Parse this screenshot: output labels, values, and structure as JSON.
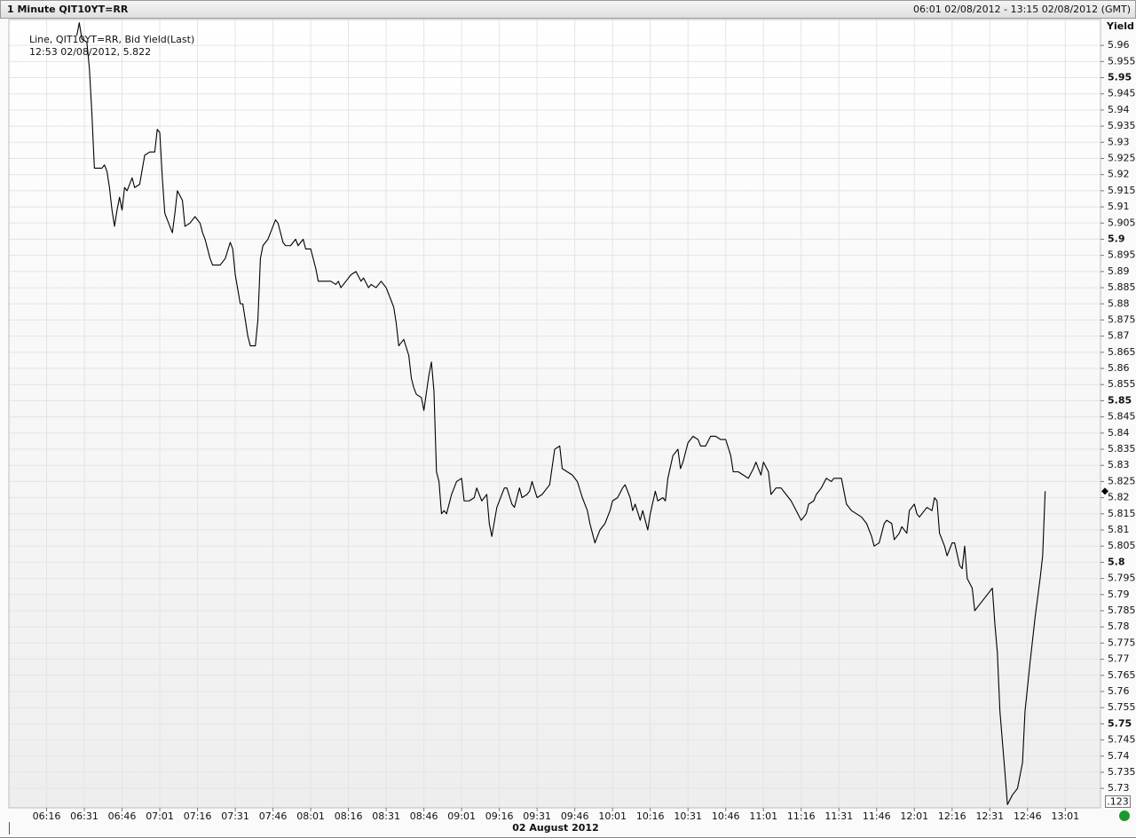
{
  "chart_data": {
    "type": "line",
    "title": "1 Minute QIT10YT=RR",
    "subtitle": "06:01 02/08/2012 - 13:15 02/08/2012 (GMT)",
    "annotations": [
      "Line, QIT10YT=RR, Bid Yield(Last)",
      "12:53 02/08/2012, 5.822"
    ],
    "y_label": "Yield",
    "x_label": "02 August 2012",
    "button_label": ".123",
    "color": "#000000",
    "grid": true,
    "xlim": [
      "06:01",
      "13:15"
    ],
    "xticks": [
      "06:16",
      "06:31",
      "06:46",
      "07:01",
      "07:16",
      "07:31",
      "07:46",
      "08:01",
      "08:16",
      "08:31",
      "08:46",
      "09:01",
      "09:16",
      "09:31",
      "09:46",
      "10:01",
      "10:16",
      "10:31",
      "10:46",
      "11:01",
      "11:16",
      "11:31",
      "11:46",
      "12:01",
      "12:16",
      "12:31",
      "12:46",
      "13:01"
    ],
    "ylim": [
      5.724,
      5.968
    ],
    "yticks": [
      5.73,
      5.735,
      5.74,
      5.745,
      5.75,
      5.755,
      5.76,
      5.765,
      5.77,
      5.775,
      5.78,
      5.785,
      5.79,
      5.795,
      5.8,
      5.805,
      5.81,
      5.815,
      5.82,
      5.825,
      5.83,
      5.835,
      5.84,
      5.845,
      5.85,
      5.855,
      5.86,
      5.865,
      5.87,
      5.875,
      5.88,
      5.885,
      5.89,
      5.895,
      5.9,
      5.905,
      5.91,
      5.915,
      5.92,
      5.925,
      5.93,
      5.935,
      5.94,
      5.945,
      5.95,
      5.955,
      5.96
    ],
    "x": [
      "06:28",
      "06:29",
      "06:30",
      "06:32",
      "06:33",
      "06:34",
      "06:35",
      "06:36",
      "06:38",
      "06:39",
      "06:40",
      "06:41",
      "06:42",
      "06:43",
      "06:44",
      "06:45",
      "06:46",
      "06:47",
      "06:48",
      "06:50",
      "06:51",
      "06:53",
      "06:55",
      "06:57",
      "06:59",
      "07:00",
      "07:01",
      "07:02",
      "07:03",
      "07:05",
      "07:06",
      "07:07",
      "07:08",
      "07:10",
      "07:11",
      "07:13",
      "07:15",
      "07:17",
      "07:18",
      "07:19",
      "07:21",
      "07:22",
      "07:25",
      "07:27",
      "07:29",
      "07:30",
      "07:31",
      "07:33",
      "07:34",
      "07:36",
      "07:37",
      "07:39",
      "07:40",
      "07:41",
      "07:42",
      "07:44",
      "07:46",
      "07:47",
      "07:48",
      "07:50",
      "07:51",
      "07:53",
      "07:55",
      "07:56",
      "07:58",
      "07:59",
      "08:01",
      "08:03",
      "08:04",
      "08:06",
      "08:09",
      "08:11",
      "08:12",
      "08:13",
      "08:15",
      "08:17",
      "08:19",
      "08:21",
      "08:22",
      "08:24",
      "08:25",
      "08:27",
      "08:29",
      "08:31",
      "08:33",
      "08:34",
      "08:35",
      "08:36",
      "08:38",
      "08:40",
      "08:41",
      "08:42",
      "08:43",
      "08:45",
      "08:46",
      "08:48",
      "08:49",
      "08:50",
      "08:51",
      "08:52",
      "08:53",
      "08:54",
      "08:55",
      "08:57",
      "08:59",
      "09:01",
      "09:02",
      "09:04",
      "09:06",
      "09:07",
      "09:09",
      "09:11",
      "09:12",
      "09:13",
      "09:15",
      "09:17",
      "09:18",
      "09:19",
      "09:21",
      "09:22",
      "09:24",
      "09:25",
      "09:27",
      "09:28",
      "09:29",
      "09:31",
      "09:33",
      "09:35",
      "09:36",
      "09:38",
      "09:40",
      "09:41",
      "09:43",
      "09:45",
      "09:47",
      "09:49",
      "09:51",
      "09:52",
      "09:54",
      "09:56",
      "09:58",
      "10:00",
      "10:01",
      "10:03",
      "10:05",
      "10:06",
      "10:08",
      "10:09",
      "10:10",
      "10:12",
      "10:13",
      "10:15",
      "10:16",
      "10:18",
      "10:19",
      "10:21",
      "10:22",
      "10:23",
      "10:25",
      "10:27",
      "10:28",
      "10:29",
      "10:31",
      "10:33",
      "10:35",
      "10:36",
      "10:38",
      "10:40",
      "10:42",
      "10:44",
      "10:46",
      "10:48",
      "10:49",
      "10:51",
      "10:53",
      "10:55",
      "10:57",
      "10:58",
      "11:00",
      "11:01",
      "11:03",
      "11:04",
      "11:06",
      "11:08",
      "11:10",
      "11:12",
      "11:14",
      "11:16",
      "11:18",
      "11:19",
      "11:21",
      "11:22",
      "11:24",
      "11:26",
      "11:28",
      "11:29",
      "11:32",
      "11:34",
      "11:36",
      "11:38",
      "11:40",
      "11:42",
      "11:44",
      "11:45",
      "11:47",
      "11:49",
      "11:50",
      "11:52",
      "11:53",
      "11:55",
      "11:56",
      "11:58",
      "11:59",
      "12:01",
      "12:02",
      "12:03",
      "12:05",
      "12:06",
      "12:08",
      "12:09",
      "12:10",
      "12:11",
      "12:13",
      "12:14",
      "12:16",
      "12:17",
      "12:19",
      "12:20",
      "12:21",
      "12:22",
      "12:24",
      "12:25",
      "12:27",
      "12:29",
      "12:31",
      "12:32",
      "12:33",
      "12:34",
      "12:35",
      "12:37",
      "12:38",
      "12:40",
      "12:42",
      "12:44",
      "12:45",
      "12:47",
      "12:49",
      "12:51",
      "12:52",
      "12:53"
    ],
    "values": [
      5.963,
      5.967,
      5.962,
      5.961,
      5.953,
      5.939,
      5.922,
      5.922,
      5.922,
      5.923,
      5.921,
      5.916,
      5.909,
      5.904,
      5.909,
      5.913,
      5.909,
      5.916,
      5.915,
      5.919,
      5.916,
      5.917,
      5.926,
      5.927,
      5.927,
      5.934,
      5.933,
      5.919,
      5.908,
      5.904,
      5.902,
      5.908,
      5.915,
      5.912,
      5.904,
      5.905,
      5.907,
      5.905,
      5.902,
      5.9,
      5.894,
      5.892,
      5.892,
      5.894,
      5.899,
      5.897,
      5.889,
      5.88,
      5.88,
      5.87,
      5.867,
      5.867,
      5.875,
      5.894,
      5.898,
      5.9,
      5.904,
      5.906,
      5.905,
      5.899,
      5.898,
      5.898,
      5.9,
      5.898,
      5.9,
      5.897,
      5.897,
      5.891,
      5.887,
      5.887,
      5.887,
      5.886,
      5.887,
      5.885,
      5.887,
      5.889,
      5.89,
      5.887,
      5.888,
      5.885,
      5.886,
      5.885,
      5.887,
      5.885,
      5.881,
      5.879,
      5.874,
      5.867,
      5.869,
      5.864,
      5.857,
      5.854,
      5.852,
      5.851,
      5.847,
      5.858,
      5.862,
      5.853,
      5.828,
      5.825,
      5.815,
      5.816,
      5.815,
      5.821,
      5.825,
      5.826,
      5.819,
      5.819,
      5.82,
      5.823,
      5.819,
      5.821,
      5.812,
      5.808,
      5.817,
      5.821,
      5.823,
      5.823,
      5.818,
      5.817,
      5.823,
      5.82,
      5.821,
      5.822,
      5.825,
      5.82,
      5.821,
      5.823,
      5.824,
      5.835,
      5.836,
      5.829,
      5.828,
      5.827,
      5.825,
      5.82,
      5.816,
      5.812,
      5.806,
      5.81,
      5.812,
      5.816,
      5.819,
      5.82,
      5.823,
      5.824,
      5.82,
      5.816,
      5.818,
      5.813,
      5.816,
      5.81,
      5.815,
      5.822,
      5.819,
      5.82,
      5.819,
      5.826,
      5.833,
      5.835,
      5.829,
      5.831,
      5.837,
      5.839,
      5.838,
      5.836,
      5.836,
      5.839,
      5.839,
      5.838,
      5.838,
      5.833,
      5.828,
      5.828,
      5.827,
      5.826,
      5.829,
      5.831,
      5.827,
      5.831,
      5.828,
      5.821,
      5.823,
      5.823,
      5.821,
      5.819,
      5.816,
      5.813,
      5.815,
      5.818,
      5.819,
      5.821,
      5.823,
      5.826,
      5.825,
      5.826,
      5.826,
      5.818,
      5.816,
      5.815,
      5.814,
      5.812,
      5.808,
      5.805,
      5.806,
      5.812,
      5.813,
      5.812,
      5.807,
      5.809,
      5.811,
      5.809,
      5.816,
      5.818,
      5.815,
      5.814,
      5.816,
      5.817,
      5.816,
      5.82,
      5.819,
      5.809,
      5.805,
      5.802,
      5.806,
      5.806,
      5.799,
      5.798,
      5.805,
      5.795,
      5.792,
      5.785,
      5.787,
      5.789,
      5.791,
      5.792,
      5.781,
      5.772,
      5.754,
      5.735,
      5.725,
      5.728,
      5.73,
      5.738,
      5.754,
      5.769,
      5.783,
      5.795,
      5.802,
      5.822
    ]
  }
}
